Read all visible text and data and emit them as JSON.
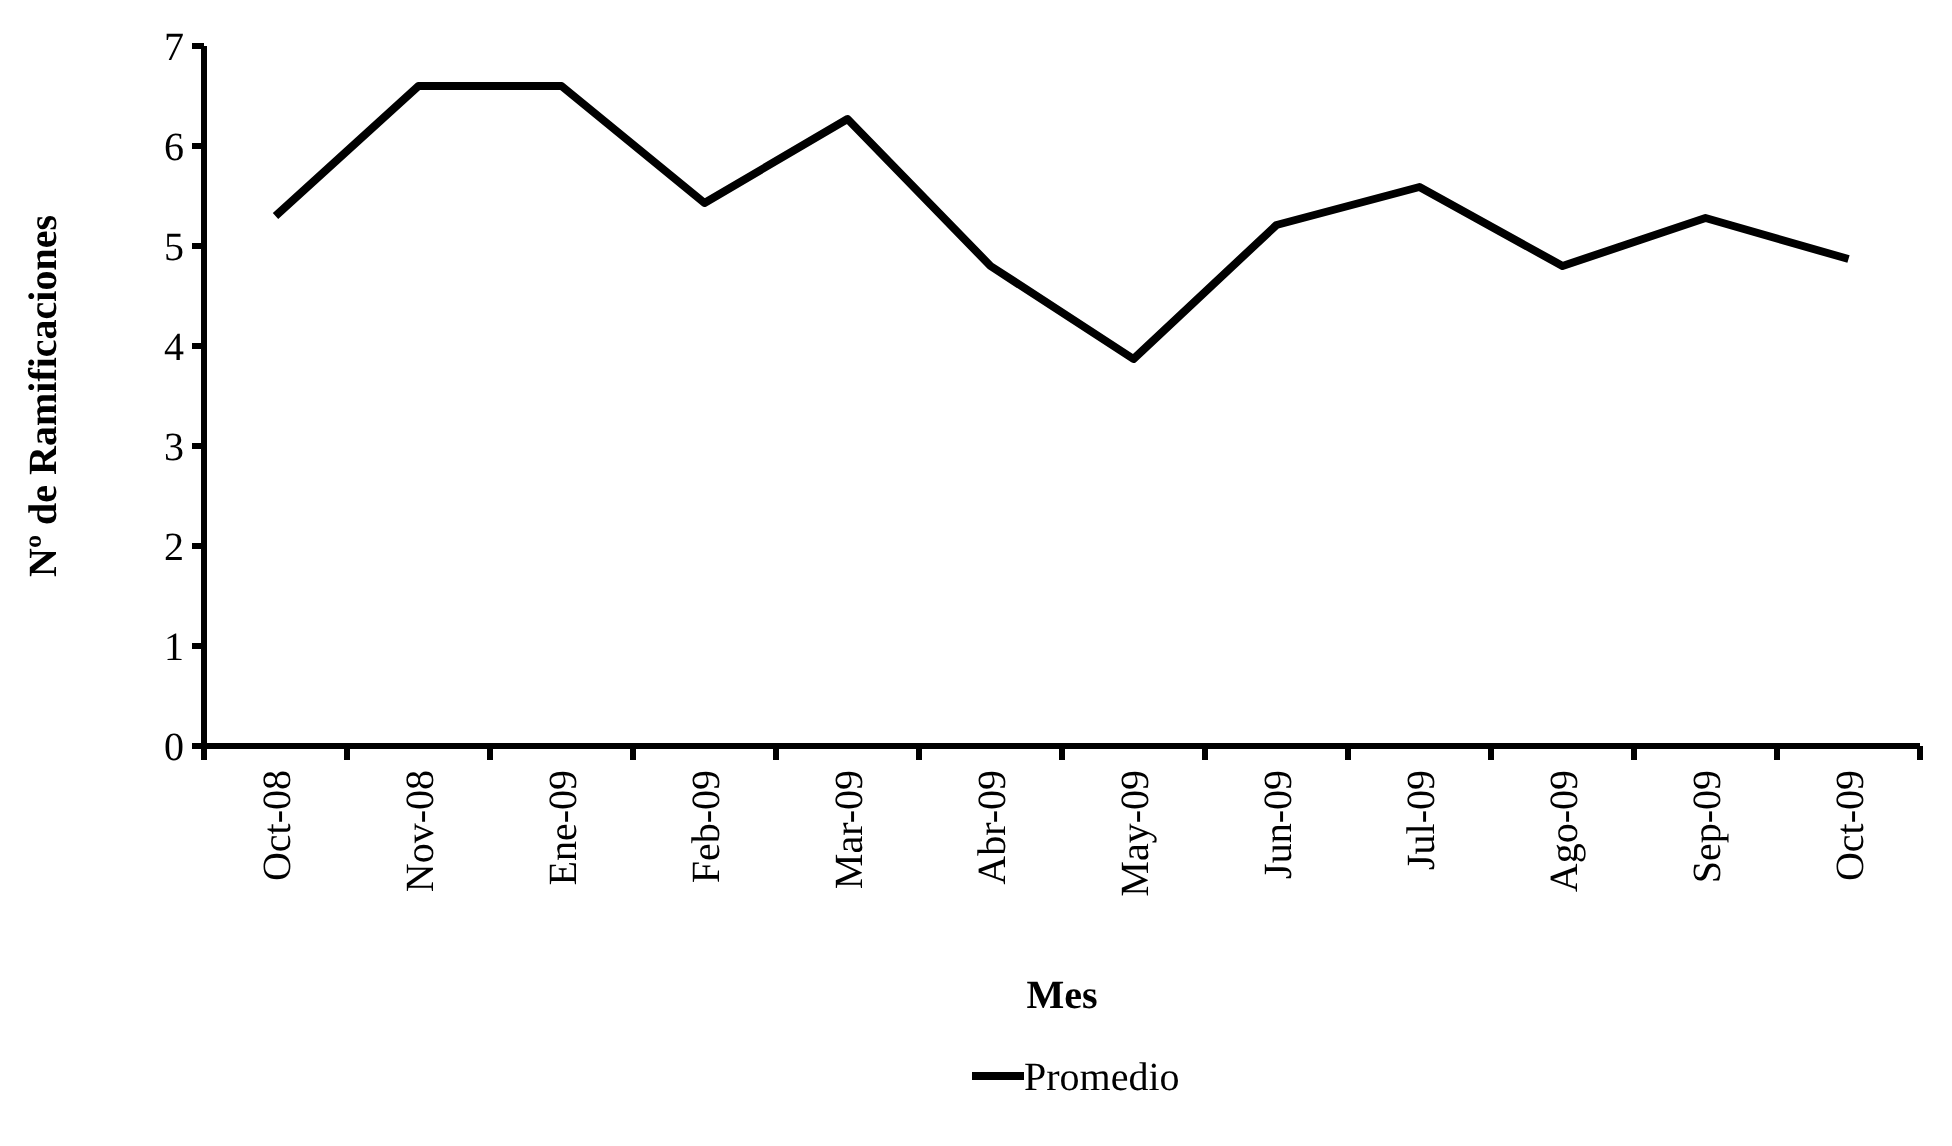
{
  "chart_data": {
    "type": "line",
    "xlabel": "Mes",
    "ylabel": "Nº de Ramificaciones",
    "categories": [
      "Oct-08",
      "Nov-08",
      "Ene-09",
      "Feb-09",
      "Mar-09",
      "Abr-09",
      "May-09",
      "Jun-09",
      "Jul-09",
      "Ago-09",
      "Sep-09",
      "Oct-09"
    ],
    "series": [
      {
        "name": "Promedio",
        "color": "#000000",
        "values": [
          5.3,
          6.6,
          6.6,
          5.43,
          6.27,
          4.8,
          3.87,
          5.21,
          5.59,
          4.8,
          5.28,
          4.87
        ]
      }
    ],
    "ylim": [
      0,
      7
    ],
    "yticks": [
      0,
      1,
      2,
      3,
      4,
      5,
      6,
      7
    ],
    "legend": "bottom",
    "marker": "none",
    "line_style": "solid"
  }
}
